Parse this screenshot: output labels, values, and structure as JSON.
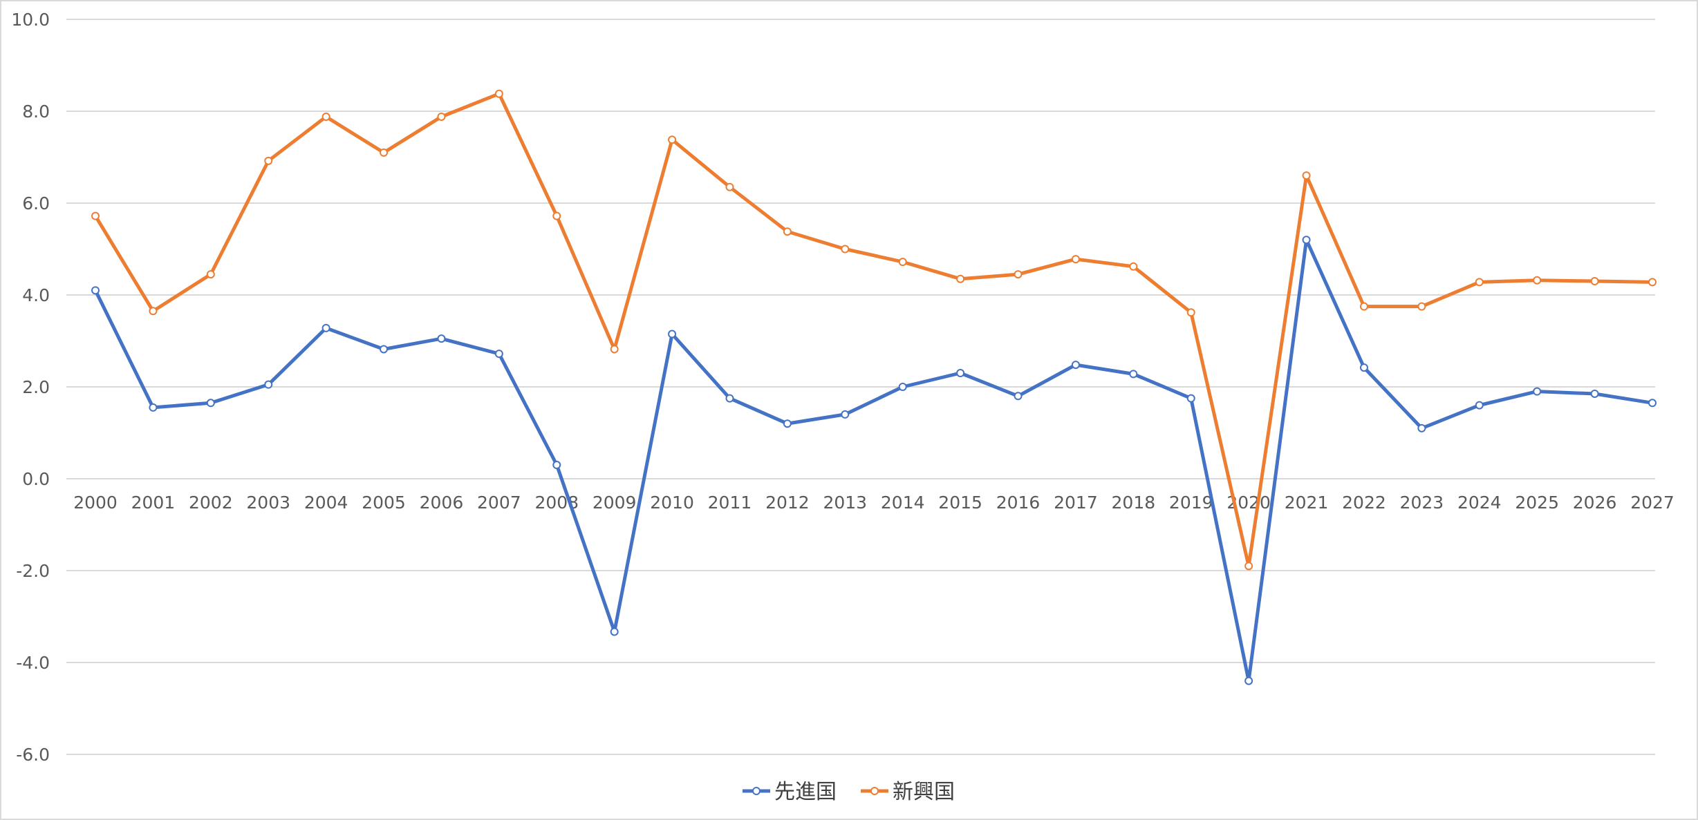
{
  "chart_data": {
    "type": "line",
    "title": "",
    "xlabel": "",
    "ylabel": "",
    "ylim": [
      -6,
      10
    ],
    "y_ticks": [
      "10.0",
      "8.0",
      "6.0",
      "4.0",
      "2.0",
      "0.0",
      "-2.0",
      "-4.0",
      "-6.0"
    ],
    "y_tick_values": [
      10,
      8,
      6,
      4,
      2,
      0,
      -2,
      -4,
      -6
    ],
    "grid": true,
    "legend_position": "bottom",
    "categories": [
      "2000",
      "2001",
      "2002",
      "2003",
      "2004",
      "2005",
      "2006",
      "2007",
      "2008",
      "2009",
      "2010",
      "2011",
      "2012",
      "2013",
      "2014",
      "2015",
      "2016",
      "2017",
      "2018",
      "2019",
      "2020",
      "2021",
      "2022",
      "2023",
      "2024",
      "2025",
      "2026",
      "2027"
    ],
    "series": [
      {
        "name": "先進国",
        "color": "#4472c4",
        "values": [
          4.1,
          1.55,
          1.65,
          2.05,
          3.28,
          2.82,
          3.05,
          2.72,
          0.3,
          -3.33,
          3.15,
          1.75,
          1.2,
          1.4,
          2.0,
          2.3,
          1.8,
          2.48,
          2.28,
          1.75,
          -4.4,
          5.2,
          2.42,
          1.1,
          1.6,
          1.9,
          1.85,
          1.65
        ]
      },
      {
        "name": "新興国",
        "color": "#ed7d31",
        "values": [
          5.72,
          3.65,
          4.45,
          6.92,
          7.88,
          7.1,
          7.88,
          8.38,
          5.72,
          2.82,
          7.38,
          6.35,
          5.38,
          5.0,
          4.72,
          4.35,
          4.45,
          4.78,
          4.62,
          3.62,
          -1.9,
          6.6,
          3.75,
          3.75,
          4.28,
          4.32,
          4.3,
          4.28
        ]
      }
    ]
  }
}
